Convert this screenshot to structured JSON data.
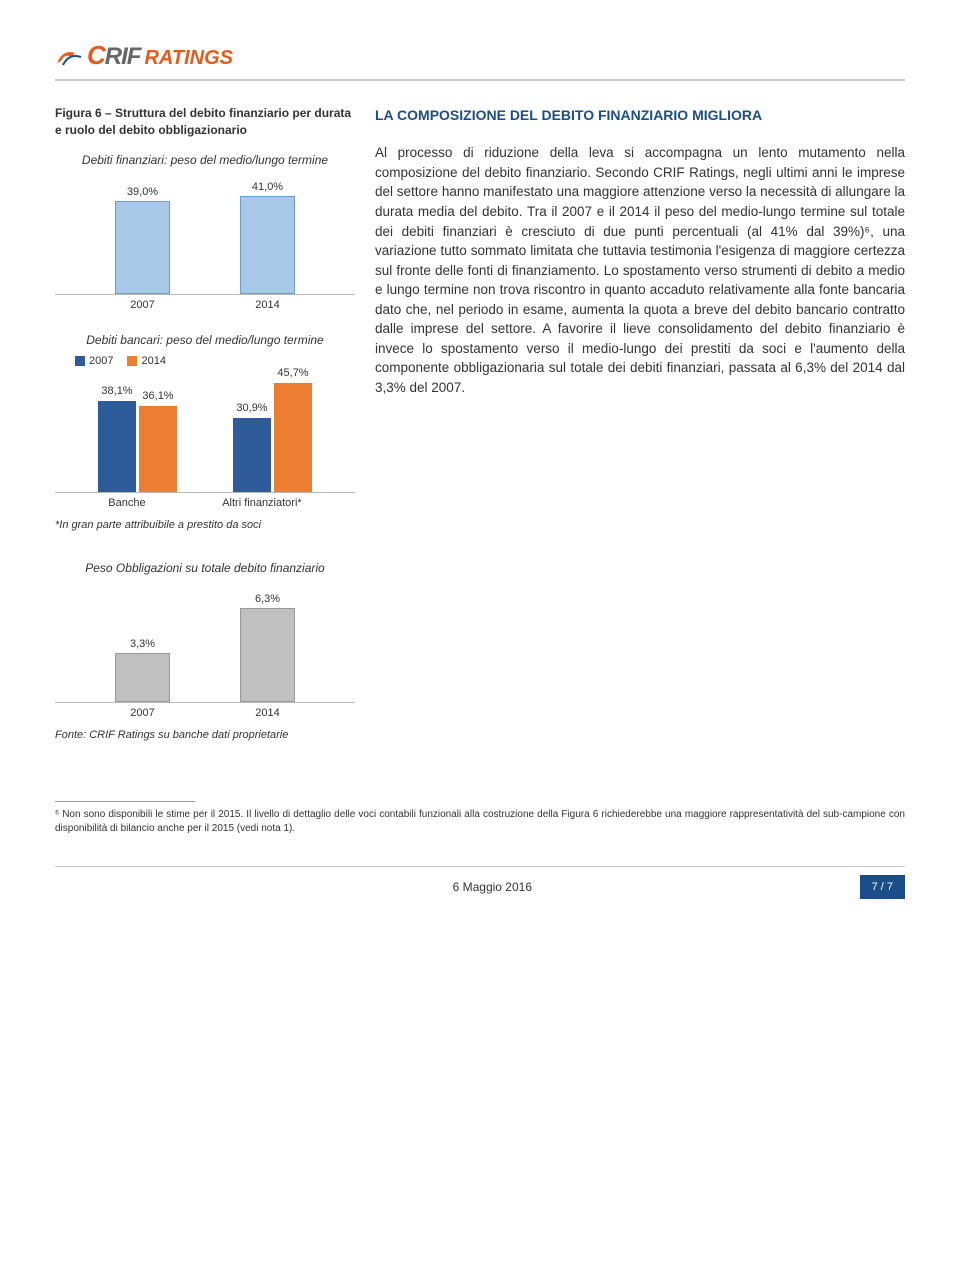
{
  "logo": {
    "brand_c": "C",
    "brand_rest": "RIF",
    "ratings": "RATINGS"
  },
  "section_title": "LA COMPOSIZIONE DEL DEBITO FINANZIARIO MIGLIORA",
  "body_text": "Al processo di riduzione della leva si accompagna un lento mutamento nella composizione del debito finanziario. Secondo CRIF Ratings, negli ultimi anni le imprese del settore hanno manifestato una maggiore attenzione verso la necessità di allungare la durata media del debito. Tra il 2007 e il 2014 il peso del medio-lungo termine sul totale dei debiti finanziari è cresciuto di due punti percentuali (al 41% dal 39%)⁶, una variazione tutto sommato limitata che tuttavia testimonia l'esigenza di maggiore certezza sul fronte delle fonti di finanziamento. Lo spostamento verso strumenti di debito a medio e lungo termine non trova riscontro in quanto accaduto relativamente alla fonte bancaria dato che, nel periodo in esame, aumenta la quota a breve del debito bancario contratto dalle imprese del settore. A favorire il lieve consolidamento del debito finanziario è invece lo spostamento verso il medio-lungo dei prestiti da soci e l'aumento della componente obbligazionaria sul totale dei debiti finanziari, passata al 6,3% del 2014 dal 3,3% del 2007.",
  "figure6": {
    "title": "Figura 6 – Struttura del debito finanziario per durata e ruolo del debito obbligazionario",
    "chart1": {
      "subtitle": "Debiti finanziari: peso del medio/lungo termine",
      "type": "bar",
      "categories": [
        "2007",
        "2014"
      ],
      "values": [
        39.0,
        41.0
      ],
      "labels": [
        "39,0%",
        "41,0%"
      ],
      "color": "#a9c8e8",
      "border": "#6a9ed0",
      "ymax": 50
    },
    "chart2": {
      "subtitle": "Debiti bancari: peso del medio/lungo termine",
      "type": "grouped-bar",
      "groups": [
        "Banche",
        "Altri finanziatori*"
      ],
      "series": [
        {
          "name": "2007",
          "color": "#2e5c9a",
          "values": [
            38.1,
            30.9
          ],
          "labels": [
            "38,1%",
            "30,9%"
          ]
        },
        {
          "name": "2014",
          "color": "#ed7d31",
          "values": [
            36.1,
            45.7
          ],
          "labels": [
            "36,1%",
            "45,7%"
          ]
        }
      ],
      "ymax": 50,
      "note": "*In gran parte attribuibile a prestito da soci"
    },
    "chart3": {
      "subtitle": "Peso Obbligazioni su totale debito finanziario",
      "type": "bar",
      "categories": [
        "2007",
        "2014"
      ],
      "values": [
        3.3,
        6.3
      ],
      "labels": [
        "3,3%",
        "6,3%"
      ],
      "color": "#c0c0c0",
      "border": "#999999",
      "ymax": 8
    },
    "source": "Fonte: CRIF Ratings su banche dati proprietarie"
  },
  "footnote": {
    "marker": "⁶",
    "text": "Non sono disponibili le stime per il 2015. Il livello di dettaglio delle voci contabili funzionali alla costruzione della Figura 6 richiederebbe una maggiore rappresentatività del sub-campione con disponibilità di bilancio anche per il 2015 (vedi nota 1)."
  },
  "footer": {
    "date": "6 Maggio 2016",
    "page": "7 / 7"
  }
}
